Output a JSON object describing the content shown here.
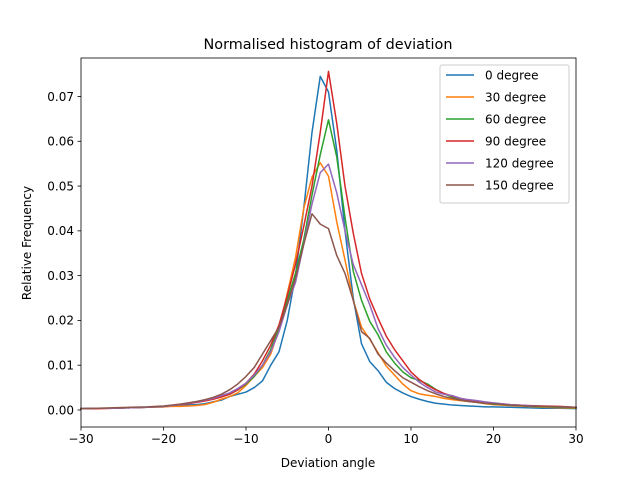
{
  "chart_data": {
    "type": "line",
    "title": "Normalised histogram of deviation",
    "xlabel": "Deviation angle",
    "ylabel": "Relative Frequency",
    "xlim": [
      -30,
      30
    ],
    "ylim": [
      -0.0038,
      0.0786
    ],
    "xticks": [
      -30,
      -20,
      -10,
      0,
      10,
      20,
      30
    ],
    "xtick_labels": [
      "−30",
      "−20",
      "−10",
      "0",
      "10",
      "20",
      "30"
    ],
    "yticks": [
      0.0,
      0.01,
      0.02,
      0.03,
      0.04,
      0.05,
      0.06,
      0.07
    ],
    "ytick_labels": [
      "0.00",
      "0.01",
      "0.02",
      "0.03",
      "0.04",
      "0.05",
      "0.06",
      "0.07"
    ],
    "grid": false,
    "legend_position": "top-right",
    "x": [
      -30,
      -28,
      -26,
      -24,
      -22,
      -20,
      -19,
      -18,
      -17,
      -16,
      -15,
      -14,
      -13,
      -12,
      -11,
      -10,
      -9,
      -8,
      -7,
      -6,
      -5,
      -4,
      -3,
      -2,
      -1,
      0,
      1,
      2,
      3,
      4,
      5,
      6,
      7,
      8,
      9,
      10,
      11,
      12,
      13,
      14,
      15,
      16,
      17,
      18,
      19,
      20,
      22,
      24,
      26,
      28,
      30
    ],
    "series": [
      {
        "name": "0 degree",
        "color": "#1f77b4",
        "values": [
          0.0003,
          0.0004,
          0.0004,
          0.0005,
          0.0006,
          0.0007,
          0.0009,
          0.001,
          0.0011,
          0.0012,
          0.0014,
          0.0018,
          0.0022,
          0.003,
          0.0035,
          0.004,
          0.005,
          0.0065,
          0.01,
          0.013,
          0.02,
          0.03,
          0.045,
          0.062,
          0.0745,
          0.071,
          0.058,
          0.04,
          0.025,
          0.0148,
          0.0108,
          0.0088,
          0.0062,
          0.0048,
          0.0038,
          0.003,
          0.0024,
          0.0019,
          0.0015,
          0.0013,
          0.0011,
          0.001,
          0.0009,
          0.0008,
          0.0007,
          0.0007,
          0.0006,
          0.0005,
          0.0004,
          0.0004,
          0.0003
        ]
      },
      {
        "name": "30 degree",
        "color": "#ff7f0e",
        "values": [
          0.0003,
          0.0003,
          0.0004,
          0.0005,
          0.0006,
          0.0007,
          0.0008,
          0.0008,
          0.0009,
          0.001,
          0.0012,
          0.0017,
          0.0024,
          0.003,
          0.0038,
          0.0055,
          0.0075,
          0.0095,
          0.0125,
          0.018,
          0.026,
          0.034,
          0.045,
          0.052,
          0.0552,
          0.0522,
          0.042,
          0.0335,
          0.0245,
          0.0185,
          0.0158,
          0.0128,
          0.0098,
          0.0078,
          0.0058,
          0.0043,
          0.0036,
          0.0033,
          0.003,
          0.0026,
          0.0023,
          0.0021,
          0.0019,
          0.0017,
          0.0014,
          0.0012,
          0.001,
          0.0008,
          0.0006,
          0.0005,
          0.0004
        ]
      },
      {
        "name": "60 degree",
        "color": "#2ca02c",
        "values": [
          0.0003,
          0.0004,
          0.0004,
          0.0005,
          0.0006,
          0.0008,
          0.001,
          0.0012,
          0.0015,
          0.0018,
          0.0021,
          0.0025,
          0.003,
          0.0035,
          0.0045,
          0.0058,
          0.0075,
          0.01,
          0.0135,
          0.0185,
          0.0245,
          0.0305,
          0.038,
          0.048,
          0.057,
          0.0648,
          0.0565,
          0.043,
          0.031,
          0.0245,
          0.0198,
          0.0168,
          0.013,
          0.0105,
          0.0085,
          0.0072,
          0.0066,
          0.0058,
          0.0046,
          0.0036,
          0.0029,
          0.0024,
          0.002,
          0.0017,
          0.0015,
          0.0013,
          0.0011,
          0.0009,
          0.0007,
          0.0006,
          0.0005
        ]
      },
      {
        "name": "90 degree",
        "color": "#d62728",
        "values": [
          0.0003,
          0.0003,
          0.0004,
          0.0005,
          0.0006,
          0.0008,
          0.001,
          0.0012,
          0.0014,
          0.0017,
          0.002,
          0.0024,
          0.0029,
          0.0035,
          0.0045,
          0.006,
          0.008,
          0.011,
          0.0145,
          0.019,
          0.0255,
          0.0325,
          0.041,
          0.05,
          0.062,
          0.0756,
          0.064,
          0.05,
          0.0395,
          0.0305,
          0.0248,
          0.0205,
          0.0165,
          0.0135,
          0.011,
          0.0085,
          0.0068,
          0.0055,
          0.0045,
          0.0037,
          0.0031,
          0.0026,
          0.0022,
          0.0019,
          0.0017,
          0.0015,
          0.0012,
          0.001,
          0.0009,
          0.0008,
          0.0006
        ]
      },
      {
        "name": "120 degree",
        "color": "#9467bd",
        "values": [
          0.0003,
          0.0004,
          0.0004,
          0.0005,
          0.0006,
          0.0008,
          0.001,
          0.0012,
          0.0015,
          0.0018,
          0.0022,
          0.0026,
          0.0032,
          0.0038,
          0.0048,
          0.006,
          0.0078,
          0.01,
          0.013,
          0.0175,
          0.0235,
          0.0285,
          0.037,
          0.046,
          0.053,
          0.0549,
          0.0485,
          0.04,
          0.0325,
          0.028,
          0.0235,
          0.0182,
          0.0145,
          0.0118,
          0.0095,
          0.0078,
          0.0062,
          0.005,
          0.004,
          0.0035,
          0.0032,
          0.0026,
          0.0023,
          0.0021,
          0.0018,
          0.0016,
          0.0012,
          0.001,
          0.0008,
          0.0007,
          0.0006
        ]
      },
      {
        "name": "150 degree",
        "color": "#8c564b",
        "values": [
          0.0003,
          0.0004,
          0.0005,
          0.0006,
          0.0007,
          0.0009,
          0.0011,
          0.0013,
          0.0016,
          0.0019,
          0.0023,
          0.0028,
          0.0035,
          0.0045,
          0.0058,
          0.0075,
          0.0095,
          0.0125,
          0.0155,
          0.0185,
          0.0235,
          0.0295,
          0.037,
          0.0438,
          0.0415,
          0.0405,
          0.0345,
          0.0305,
          0.0245,
          0.0175,
          0.016,
          0.0125,
          0.0105,
          0.0088,
          0.0072,
          0.0062,
          0.0052,
          0.0043,
          0.0036,
          0.003,
          0.0026,
          0.0022,
          0.0019,
          0.0017,
          0.0015,
          0.0014,
          0.0011,
          0.0009,
          0.0008,
          0.0007,
          0.0006
        ]
      }
    ]
  }
}
